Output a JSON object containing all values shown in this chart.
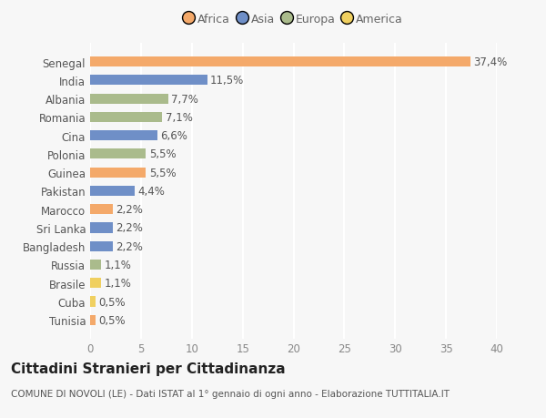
{
  "countries": [
    "Tunisia",
    "Cuba",
    "Brasile",
    "Russia",
    "Bangladesh",
    "Sri Lanka",
    "Marocco",
    "Pakistan",
    "Guinea",
    "Polonia",
    "Cina",
    "Romania",
    "Albania",
    "India",
    "Senegal"
  ],
  "values": [
    0.5,
    0.5,
    1.1,
    1.1,
    2.2,
    2.2,
    2.2,
    4.4,
    5.5,
    5.5,
    6.6,
    7.1,
    7.7,
    11.5,
    37.4
  ],
  "labels": [
    "0,5%",
    "0,5%",
    "1,1%",
    "1,1%",
    "2,2%",
    "2,2%",
    "2,2%",
    "4,4%",
    "5,5%",
    "5,5%",
    "6,6%",
    "7,1%",
    "7,7%",
    "11,5%",
    "37,4%"
  ],
  "continents": [
    "Africa",
    "America",
    "America",
    "Europa",
    "Asia",
    "Asia",
    "Africa",
    "Asia",
    "Africa",
    "Europa",
    "Asia",
    "Europa",
    "Europa",
    "Asia",
    "Africa"
  ],
  "colors": {
    "Africa": "#F4A96A",
    "Asia": "#6F8FC7",
    "Europa": "#AABB8C",
    "America": "#F0D060"
  },
  "legend_order": [
    "Africa",
    "Asia",
    "Europa",
    "America"
  ],
  "xlim": [
    0,
    40
  ],
  "xticks": [
    0,
    5,
    10,
    15,
    20,
    25,
    30,
    35,
    40
  ],
  "title": "Cittadini Stranieri per Cittadinanza",
  "subtitle": "COMUNE DI NOVOLI (LE) - Dati ISTAT al 1° gennaio di ogni anno - Elaborazione TUTTITALIA.IT",
  "bg_color": "#f7f7f7",
  "bar_height": 0.55,
  "label_fontsize": 8.5,
  "tick_fontsize": 8.5,
  "title_fontsize": 11,
  "subtitle_fontsize": 7.5
}
